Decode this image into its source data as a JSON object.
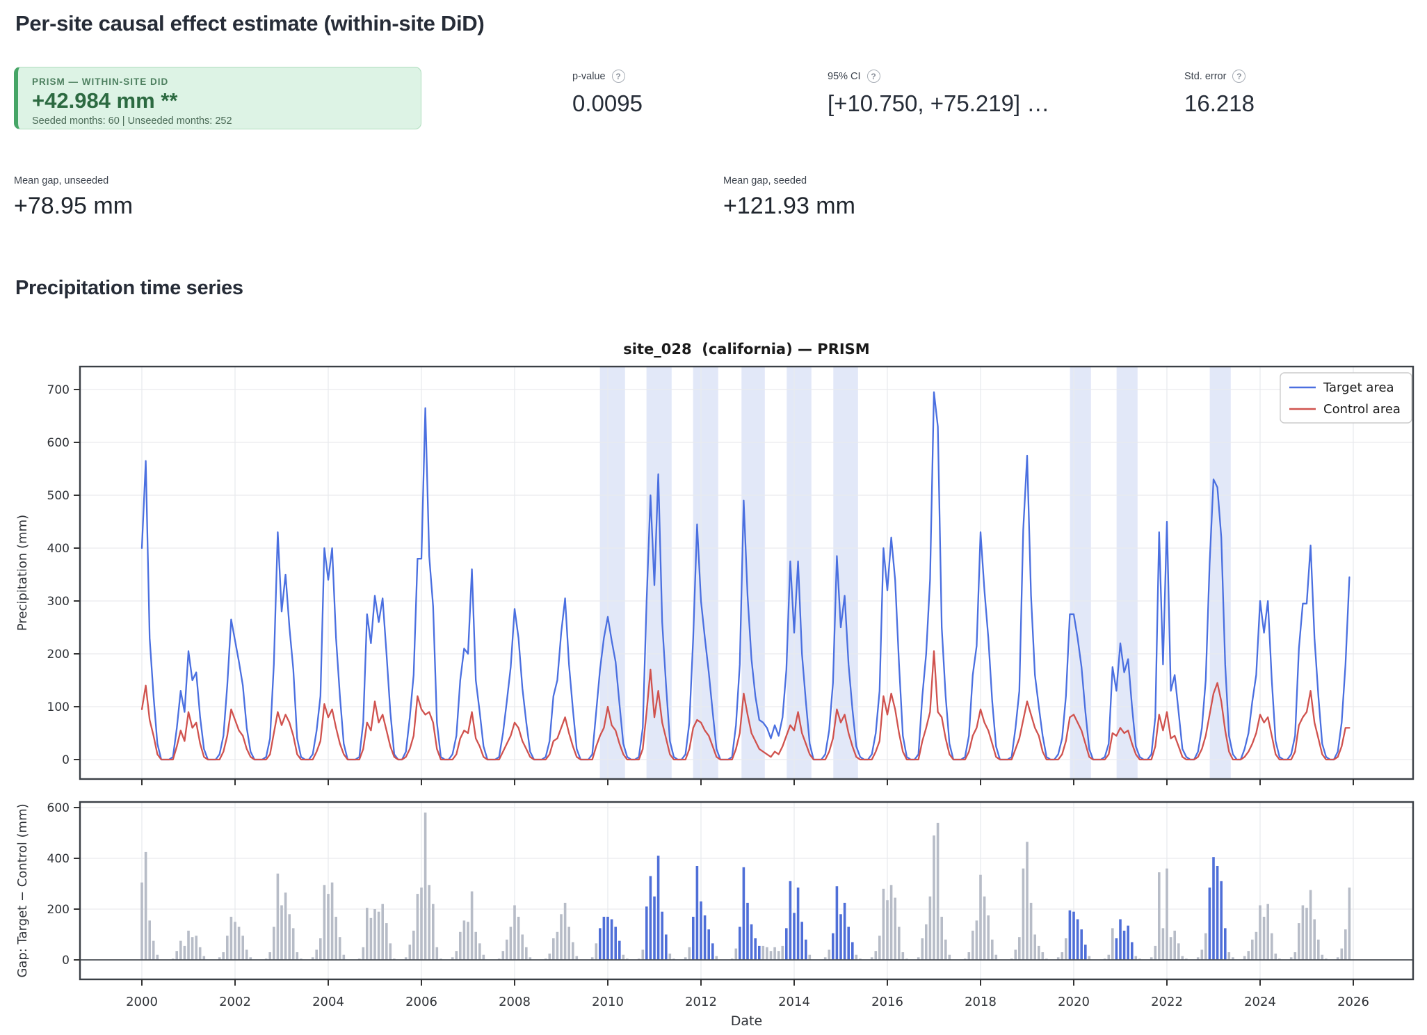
{
  "page": {
    "title": "Per-site causal effect estimate (within-site DiD)",
    "section_title": "Precipitation time series"
  },
  "summary_card": {
    "label": "PRISM — WITHIN-SITE DID",
    "value": "+42.984 mm **",
    "subtext": "Seeded months: 60 | Unseeded months: 252",
    "accent_color": "#46a566",
    "background_color": "#ddf3e5"
  },
  "stats": [
    {
      "label": "p-value",
      "value": "0.0095",
      "help_icon": "?"
    },
    {
      "label": "95% CI",
      "value": "[+10.750, +75.219] …",
      "help_icon": "?"
    },
    {
      "label": "Std. error",
      "value": "16.218",
      "help_icon": "?"
    }
  ],
  "gap_metrics": [
    {
      "label": "Mean gap, unseeded",
      "value": "+78.95 mm"
    },
    {
      "label": "Mean gap, seeded",
      "value": "+121.93 mm"
    }
  ],
  "chart_data": [
    {
      "type": "line",
      "title": "site_028  (california) — PRISM",
      "ylabel": "Precipitation (mm)",
      "xlabel": "",
      "x_start": "2000-01",
      "x_months": 312,
      "xticks": [
        2000,
        2002,
        2004,
        2006,
        2008,
        2010,
        2012,
        2014,
        2016,
        2018,
        2020,
        2022,
        2024,
        2026
      ],
      "yticks": [
        0,
        100,
        200,
        300,
        400,
        500,
        600,
        700
      ],
      "ylim": [
        -37,
        743
      ],
      "xlim": [
        1998.67,
        2027.28
      ],
      "grid": true,
      "legend_position": "upper right",
      "legend": [
        {
          "label": "Target area",
          "color": "#4a6fe0"
        },
        {
          "label": "Control area",
          "color": "#d0524e"
        }
      ],
      "seeded_band_color": "#e2e8f8",
      "seeded_ranges": [
        [
          2009.83,
          2010.37
        ],
        [
          2010.83,
          2011.37
        ],
        [
          2011.83,
          2012.37
        ],
        [
          2012.87,
          2013.37
        ],
        [
          2013.84,
          2014.37
        ],
        [
          2014.84,
          2015.37
        ],
        [
          2019.92,
          2020.37
        ],
        [
          2020.92,
          2021.37
        ],
        [
          2022.92,
          2023.37
        ]
      ],
      "series": [
        {
          "name": "Target area",
          "color": "#4a6fe0",
          "values": [
            400,
            565,
            230,
            120,
            30,
            0,
            0,
            0,
            5,
            60,
            130,
            90,
            205,
            150,
            165,
            80,
            20,
            0,
            0,
            0,
            10,
            45,
            140,
            265,
            225,
            185,
            140,
            60,
            15,
            0,
            0,
            0,
            5,
            40,
            180,
            430,
            280,
            350,
            250,
            170,
            40,
            5,
            0,
            0,
            10,
            55,
            120,
            400,
            340,
            400,
            230,
            120,
            30,
            0,
            0,
            0,
            5,
            70,
            275,
            220,
            310,
            260,
            305,
            200,
            90,
            10,
            0,
            0,
            15,
            80,
            160,
            380,
            380,
            665,
            385,
            290,
            70,
            5,
            0,
            0,
            10,
            45,
            150,
            210,
            200,
            360,
            150,
            90,
            25,
            0,
            0,
            0,
            5,
            50,
            110,
            175,
            285,
            230,
            135,
            70,
            15,
            0,
            0,
            0,
            5,
            35,
            120,
            150,
            240,
            305,
            180,
            95,
            20,
            0,
            0,
            0,
            10,
            90,
            170,
            230,
            270,
            225,
            185,
            105,
            30,
            5,
            0,
            0,
            5,
            60,
            300,
            500,
            330,
            540,
            260,
            140,
            35,
            5,
            0,
            0,
            10,
            70,
            230,
            445,
            300,
            230,
            165,
            90,
            20,
            0,
            0,
            0,
            5,
            65,
            180,
            490,
            310,
            190,
            120,
            75,
            70,
            60,
            40,
            65,
            45,
            80,
            170,
            375,
            240,
            375,
            200,
            110,
            30,
            0,
            0,
            0,
            10,
            55,
            145,
            385,
            250,
            310,
            180,
            95,
            25,
            5,
            0,
            0,
            10,
            50,
            130,
            400,
            320,
            420,
            340,
            180,
            45,
            5,
            0,
            0,
            10,
            120,
            200,
            340,
            695,
            630,
            250,
            120,
            30,
            0,
            0,
            0,
            5,
            45,
            160,
            215,
            430,
            320,
            230,
            110,
            25,
            0,
            0,
            0,
            5,
            60,
            130,
            435,
            575,
            310,
            160,
            100,
            45,
            5,
            0,
            0,
            10,
            40,
            120,
            275,
            275,
            230,
            175,
            90,
            20,
            0,
            0,
            0,
            5,
            30,
            175,
            130,
            220,
            165,
            190,
            100,
            25,
            5,
            0,
            0,
            10,
            80,
            430,
            180,
            450,
            130,
            160,
            90,
            20,
            5,
            0,
            0,
            15,
            60,
            150,
            370,
            530,
            515,
            420,
            180,
            45,
            10,
            0,
            0,
            20,
            50,
            110,
            160,
            300,
            240,
            300,
            150,
            35,
            5,
            0,
            0,
            10,
            45,
            210,
            295,
            295,
            405,
            230,
            120,
            30,
            5,
            0,
            0,
            15,
            70,
            180,
            345
          ]
        },
        {
          "name": "Control area",
          "color": "#d0524e",
          "values": [
            95,
            140,
            75,
            45,
            10,
            0,
            0,
            0,
            0,
            25,
            55,
            35,
            90,
            60,
            70,
            30,
            5,
            0,
            0,
            0,
            0,
            15,
            45,
            95,
            75,
            55,
            45,
            20,
            5,
            0,
            0,
            0,
            0,
            10,
            50,
            90,
            65,
            85,
            70,
            45,
            10,
            0,
            0,
            0,
            0,
            15,
            35,
            105,
            80,
            95,
            60,
            30,
            10,
            0,
            0,
            0,
            0,
            20,
            70,
            55,
            110,
            70,
            85,
            55,
            25,
            5,
            0,
            0,
            5,
            20,
            45,
            120,
            95,
            85,
            90,
            70,
            20,
            0,
            0,
            0,
            0,
            10,
            40,
            55,
            50,
            90,
            40,
            25,
            5,
            0,
            0,
            0,
            0,
            15,
            30,
            45,
            70,
            60,
            35,
            20,
            5,
            0,
            0,
            0,
            0,
            10,
            35,
            40,
            60,
            80,
            50,
            25,
            5,
            0,
            0,
            0,
            0,
            25,
            45,
            60,
            100,
            65,
            55,
            30,
            10,
            0,
            0,
            0,
            0,
            20,
            90,
            170,
            80,
            130,
            70,
            40,
            10,
            0,
            0,
            0,
            0,
            20,
            60,
            75,
            70,
            55,
            45,
            25,
            5,
            0,
            0,
            0,
            0,
            20,
            50,
            125,
            85,
            50,
            35,
            20,
            15,
            10,
            5,
            15,
            10,
            25,
            45,
            65,
            55,
            90,
            50,
            30,
            10,
            0,
            0,
            0,
            0,
            15,
            40,
            95,
            70,
            85,
            50,
            25,
            5,
            0,
            0,
            0,
            0,
            15,
            35,
            120,
            85,
            125,
            95,
            50,
            15,
            0,
            0,
            0,
            0,
            35,
            60,
            90,
            205,
            90,
            80,
            40,
            10,
            0,
            0,
            0,
            0,
            15,
            45,
            60,
            95,
            70,
            55,
            30,
            5,
            0,
            0,
            0,
            0,
            20,
            40,
            75,
            110,
            85,
            60,
            45,
            15,
            0,
            0,
            0,
            0,
            10,
            35,
            80,
            85,
            70,
            55,
            30,
            5,
            0,
            0,
            0,
            0,
            10,
            50,
            45,
            60,
            50,
            55,
            30,
            10,
            0,
            0,
            0,
            0,
            25,
            85,
            55,
            90,
            40,
            45,
            25,
            5,
            0,
            0,
            0,
            5,
            20,
            45,
            85,
            125,
            145,
            110,
            55,
            15,
            0,
            0,
            0,
            5,
            15,
            30,
            50,
            85,
            70,
            80,
            45,
            10,
            0,
            0,
            0,
            0,
            15,
            65,
            80,
            90,
            130,
            70,
            40,
            10,
            0,
            0,
            0,
            5,
            25,
            60,
            60
          ]
        }
      ]
    },
    {
      "type": "bar",
      "title": "",
      "ylabel": "Gap: Target − Control (mm)",
      "xlabel": "Date",
      "derive": "target_minus_control",
      "yticks": [
        0,
        200,
        400,
        600
      ],
      "ylim": [
        -77,
        620
      ],
      "grid": true,
      "bar_colors": {
        "unseeded": "#b7bcc7",
        "seeded": "#4f6fd8"
      }
    }
  ]
}
